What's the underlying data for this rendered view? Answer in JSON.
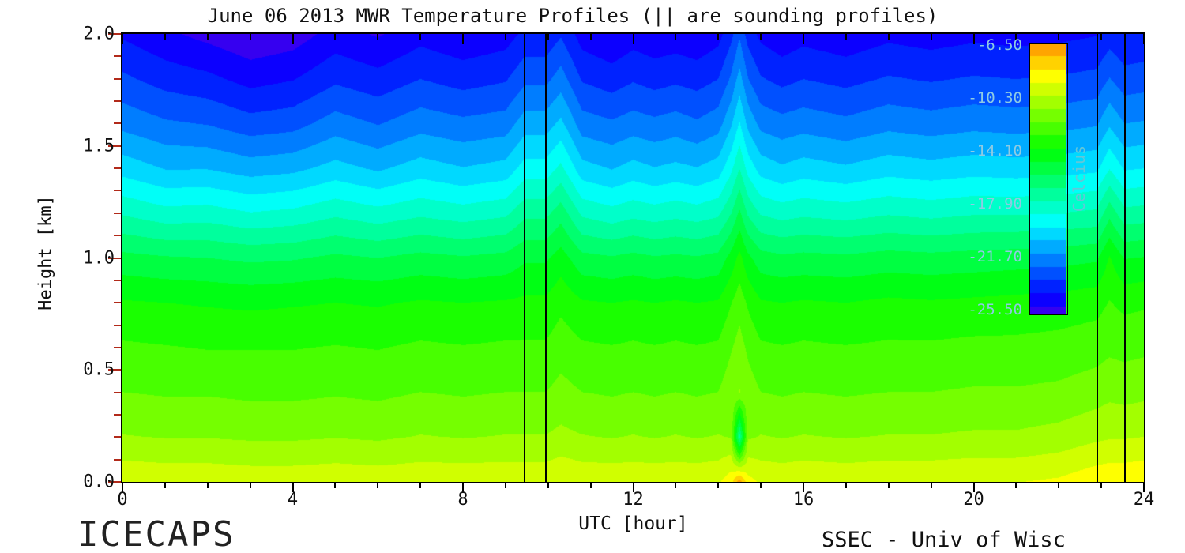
{
  "title": "June 06 2013 MWR Temperature Profiles (|| are sounding profiles)",
  "footer": {
    "left": "ICECAPS",
    "right": "SSEC - Univ of Wisc"
  },
  "axes": {
    "xlabel": "UTC [hour]",
    "ylabel": "Height [km]",
    "xlim": [
      0,
      24
    ],
    "ylim": [
      0,
      2.0
    ],
    "x_tick_values": [
      0,
      4,
      8,
      12,
      16,
      20,
      24
    ],
    "x_tick_labels": [
      "0",
      "4",
      "8",
      "12",
      "16",
      "20",
      "24"
    ],
    "x_minor_step": 1,
    "y_tick_values": [
      0.0,
      0.5,
      1.0,
      1.5,
      2.0
    ],
    "y_tick_labels": [
      "0.0",
      "0.5",
      "1.0",
      "1.5",
      "2.0"
    ],
    "y_minor_step": 0.1,
    "tick_color_left": "#b22a1a",
    "tick_color_bottom": "#000000",
    "frame_color": "#000000"
  },
  "colorbar": {
    "title": "Celcius",
    "vmin": -25.8,
    "vmax": -6.4,
    "tick_values": [
      -6.5,
      -10.3,
      -14.1,
      -17.9,
      -21.7,
      -25.5
    ],
    "tick_labels": [
      "-6.50",
      "-10.30",
      "-14.10",
      "-17.90",
      "-21.70",
      "-25.50"
    ],
    "label_color": "#8ecbe3",
    "title_color": "#63c7d8"
  },
  "annotations": {
    "sounding_lines_utc": [
      9.45,
      9.95,
      22.9,
      23.55
    ],
    "sounding_line_color": "#000000"
  },
  "chart_data": {
    "type": "heatmap",
    "title": "June 06 2013 MWR Temperature Profiles",
    "xlabel": "UTC [hour]",
    "ylabel": "Height [km]",
    "units": "Celcius",
    "xlim": [
      0,
      24
    ],
    "ylim": [
      0,
      2.0
    ],
    "colormap": "rainbow",
    "contour_interval": 0.95,
    "x": [
      0,
      1,
      2,
      3,
      4,
      5,
      6,
      7,
      8,
      9,
      9.45,
      9.95,
      10.3,
      10.8,
      11.5,
      12,
      12.5,
      13,
      13.5,
      14,
      14.3,
      14.5,
      14.7,
      15,
      15.5,
      16,
      17,
      18,
      19,
      20,
      21,
      22,
      22.9,
      23.2,
      23.55,
      24
    ],
    "y": [
      0.0,
      0.2,
      0.4,
      0.6,
      0.8,
      1.0,
      1.2,
      1.4,
      1.6,
      1.8,
      2.0
    ],
    "values": [
      [
        -9.3,
        -11.0,
        -12.0,
        -12.8,
        -13.8,
        -15.5,
        -17.8,
        -20.0,
        -21.8,
        -23.2,
        -24.5
      ],
      [
        -9.4,
        -11.1,
        -12.1,
        -12.9,
        -13.9,
        -15.7,
        -18.3,
        -20.6,
        -22.3,
        -23.8,
        -25.1
      ],
      [
        -9.4,
        -11.1,
        -12.1,
        -13.0,
        -14.0,
        -15.8,
        -18.2,
        -20.6,
        -22.5,
        -24.1,
        -25.6
      ],
      [
        -9.5,
        -11.2,
        -12.2,
        -13.0,
        -14.1,
        -16.0,
        -18.6,
        -21.0,
        -23.0,
        -24.7,
        -26.1
      ],
      [
        -9.5,
        -11.2,
        -12.2,
        -13.0,
        -14.0,
        -15.9,
        -18.4,
        -20.8,
        -22.8,
        -24.4,
        -25.8
      ],
      [
        -9.4,
        -11.1,
        -12.1,
        -12.9,
        -13.9,
        -15.6,
        -17.9,
        -20.2,
        -22.0,
        -23.6,
        -24.9
      ],
      [
        -9.5,
        -11.2,
        -12.2,
        -13.0,
        -14.0,
        -15.8,
        -18.3,
        -20.7,
        -22.5,
        -24.0,
        -25.4
      ],
      [
        -9.4,
        -11.0,
        -12.0,
        -12.8,
        -13.8,
        -15.5,
        -17.9,
        -20.1,
        -21.9,
        -23.4,
        -24.7
      ],
      [
        -9.4,
        -11.1,
        -12.1,
        -12.9,
        -13.9,
        -15.7,
        -18.2,
        -20.5,
        -22.2,
        -23.8,
        -25.1
      ],
      [
        -9.4,
        -11.0,
        -12.0,
        -12.8,
        -13.8,
        -15.5,
        -17.9,
        -20.2,
        -22.0,
        -23.5,
        -24.8
      ],
      [
        -9.4,
        -11.0,
        -12.0,
        -12.8,
        -13.7,
        -15.0,
        -17.0,
        -19.2,
        -21.0,
        -22.7,
        -24.1
      ],
      [
        -9.4,
        -11.0,
        -12.0,
        -12.8,
        -13.7,
        -15.0,
        -17.0,
        -19.2,
        -21.0,
        -22.7,
        -24.1
      ],
      [
        -9.2,
        -10.8,
        -11.7,
        -12.4,
        -13.2,
        -14.4,
        -16.2,
        -18.4,
        -20.3,
        -22.0,
        -23.5
      ],
      [
        -9.4,
        -11.0,
        -12.0,
        -12.8,
        -13.8,
        -15.5,
        -17.9,
        -20.2,
        -22.0,
        -23.5,
        -24.8
      ],
      [
        -9.4,
        -11.1,
        -12.1,
        -12.9,
        -13.9,
        -15.7,
        -18.3,
        -20.6,
        -22.3,
        -23.9,
        -25.2
      ],
      [
        -9.4,
        -11.0,
        -12.0,
        -12.8,
        -13.8,
        -15.5,
        -18.0,
        -20.2,
        -22.0,
        -23.5,
        -24.8
      ],
      [
        -9.4,
        -11.1,
        -12.1,
        -12.9,
        -13.9,
        -15.7,
        -18.2,
        -20.5,
        -22.2,
        -23.8,
        -25.0
      ],
      [
        -9.4,
        -11.0,
        -12.0,
        -12.8,
        -13.8,
        -15.6,
        -18.0,
        -20.3,
        -22.0,
        -23.6,
        -24.9
      ],
      [
        -9.4,
        -11.1,
        -12.1,
        -12.9,
        -13.9,
        -15.7,
        -18.2,
        -20.5,
        -22.3,
        -23.8,
        -25.1
      ],
      [
        -9.3,
        -11.0,
        -12.0,
        -12.8,
        -13.8,
        -15.5,
        -17.9,
        -20.1,
        -21.9,
        -23.4,
        -24.7
      ],
      [
        -8.6,
        -11.1,
        -11.4,
        -12.1,
        -13.0,
        -14.5,
        -16.8,
        -18.9,
        -20.7,
        -22.3,
        -23.7
      ],
      [
        -6.7,
        -17.3,
        -11.0,
        -11.6,
        -12.4,
        -13.6,
        -15.6,
        -17.7,
        -19.5,
        -21.1,
        -22.6
      ],
      [
        -8.8,
        -11.2,
        -11.5,
        -12.2,
        -13.1,
        -14.6,
        -16.9,
        -19.0,
        -20.8,
        -22.4,
        -23.8
      ],
      [
        -9.3,
        -11.0,
        -12.0,
        -12.8,
        -13.8,
        -15.4,
        -17.8,
        -20.0,
        -21.8,
        -23.3,
        -24.6
      ],
      [
        -9.4,
        -11.1,
        -12.1,
        -12.9,
        -13.9,
        -15.6,
        -18.1,
        -20.4,
        -22.1,
        -23.7,
        -25.0
      ],
      [
        -9.3,
        -11.0,
        -12.0,
        -12.8,
        -13.8,
        -15.5,
        -17.9,
        -20.1,
        -21.9,
        -23.4,
        -24.7
      ],
      [
        -9.4,
        -11.1,
        -12.1,
        -12.9,
        -13.9,
        -15.6,
        -18.1,
        -20.4,
        -22.2,
        -23.7,
        -25.0
      ],
      [
        -9.3,
        -11.0,
        -12.0,
        -12.8,
        -13.7,
        -15.4,
        -17.8,
        -20.0,
        -21.8,
        -23.3,
        -24.6
      ],
      [
        -9.3,
        -11.0,
        -12.0,
        -12.8,
        -13.8,
        -15.5,
        -18.0,
        -20.2,
        -22.0,
        -23.5,
        -24.8
      ],
      [
        -9.2,
        -10.9,
        -11.9,
        -12.7,
        -13.7,
        -15.4,
        -17.8,
        -20.0,
        -21.8,
        -23.3,
        -24.6
      ],
      [
        -9.2,
        -10.9,
        -11.9,
        -12.7,
        -13.6,
        -15.3,
        -17.8,
        -20.1,
        -21.9,
        -23.4,
        -24.7
      ],
      [
        -9.0,
        -10.7,
        -11.8,
        -12.6,
        -13.5,
        -15.2,
        -17.7,
        -20.0,
        -21.8,
        -23.3,
        -24.6
      ],
      [
        -8.5,
        -10.3,
        -11.5,
        -12.4,
        -13.3,
        -15.0,
        -17.5,
        -19.8,
        -21.6,
        -23.1,
        -24.4
      ],
      [
        -8.4,
        -10.2,
        -11.3,
        -12.2,
        -12.9,
        -13.8,
        -16.1,
        -18.7,
        -20.7,
        -22.4,
        -23.9
      ],
      [
        -8.4,
        -10.2,
        -11.4,
        -12.3,
        -13.2,
        -14.9,
        -17.4,
        -19.7,
        -21.5,
        -23.0,
        -24.3
      ],
      [
        -8.3,
        -10.1,
        -11.3,
        -12.2,
        -13.1,
        -14.8,
        -17.3,
        -19.6,
        -21.4,
        -22.9,
        -24.2
      ]
    ]
  }
}
